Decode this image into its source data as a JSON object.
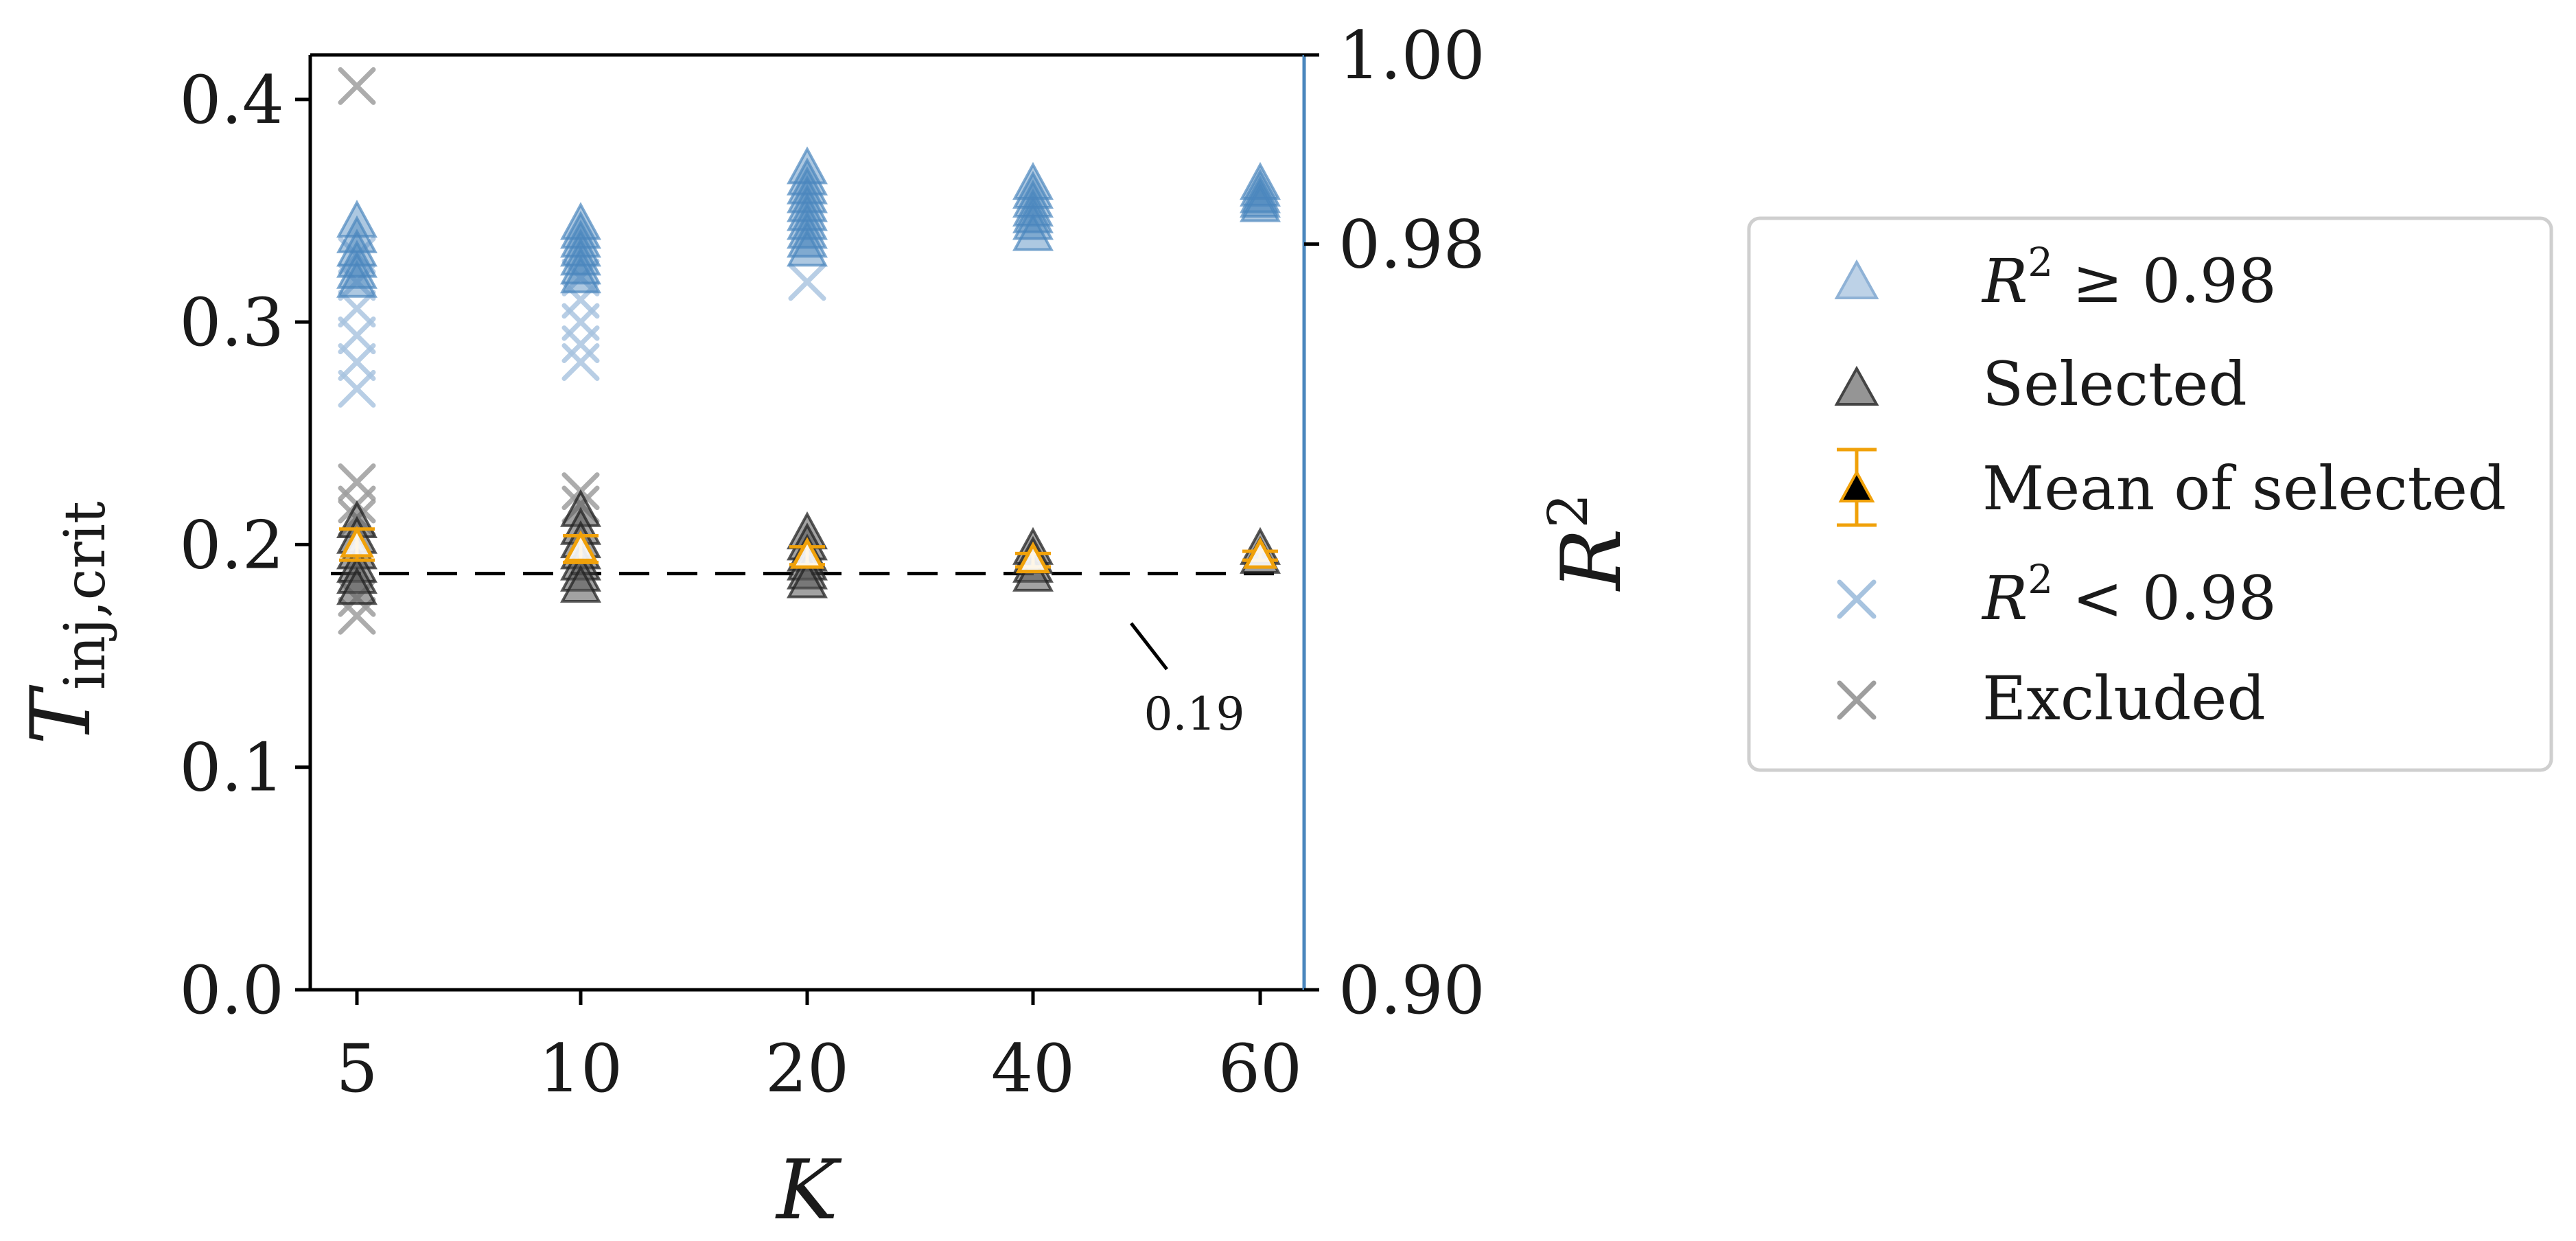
{
  "chart_data": {
    "type": "scatter",
    "xlabel": "K",
    "ylabel_main": "T",
    "ylabel_sub": "inj,crit",
    "ylabel_right": "R",
    "ylabel_right_sup": "2",
    "categories": [
      "5",
      "10",
      "20",
      "40",
      "60"
    ],
    "ylim": [
      0,
      0.42
    ],
    "yticks": [
      "0.0",
      "0.1",
      "0.2",
      "0.3",
      "0.4"
    ],
    "yticks_values": [
      0.0,
      0.1,
      0.2,
      0.3,
      0.4
    ],
    "right_ylim_labels": [
      "0.90",
      "0.98",
      "1.00"
    ],
    "right_tick_positions": [
      0.0,
      0.335,
      0.42
    ],
    "grid": false,
    "legend_position": "right, outside",
    "reference_line": {
      "y": 0.187,
      "style": "dashed",
      "color": "#000000"
    },
    "annotation": {
      "text": "0.19"
    },
    "colors": {
      "r2_high": "#4a86bd",
      "r2_low": "#a7c3df",
      "selected": "#555555",
      "excluded": "#9e9e9e",
      "mean": "#f0a10a",
      "right_axis": "#4a86bd"
    },
    "series": [
      {
        "name": "R^2 ≥ 0.98",
        "marker": "triangle",
        "points": {
          "5": [
            0.345,
            0.338,
            0.332,
            0.327,
            0.322,
            0.318
          ],
          "10": [
            0.344,
            0.34,
            0.336,
            0.332,
            0.328,
            0.324,
            0.32
          ],
          "20": [
            0.369,
            0.364,
            0.36,
            0.356,
            0.352,
            0.348,
            0.344,
            0.34,
            0.336,
            0.332
          ],
          "40": [
            0.362,
            0.358,
            0.354,
            0.35,
            0.347,
            0.344,
            0.339
          ],
          "60": [
            0.362,
            0.359,
            0.356,
            0.354,
            0.352
          ]
        }
      },
      {
        "name": "Selected",
        "marker": "triangle",
        "points": {
          "5": [
            0.21,
            0.203,
            0.196,
            0.19,
            0.185,
            0.18
          ],
          "10": [
            0.215,
            0.207,
            0.201,
            0.196,
            0.191,
            0.186,
            0.181
          ],
          "20": [
            0.205,
            0.2,
            0.195,
            0.191,
            0.187,
            0.183
          ],
          "40": [
            0.198,
            0.194,
            0.19,
            0.186
          ],
          "60": [
            0.198,
            0.194
          ]
        }
      },
      {
        "name": "Mean of selected",
        "marker": "triangle-errorbar",
        "points": {
          "5": [
            0.2
          ],
          "10": [
            0.198
          ],
          "20": [
            0.195
          ],
          "40": [
            0.193
          ],
          "60": [
            0.195
          ]
        },
        "errors": [
          0.007,
          0.006,
          0.004,
          0.003,
          0.002
        ]
      },
      {
        "name": "R^2 < 0.98",
        "marker": "x",
        "points": {
          "5": [
            0.33,
            0.318,
            0.306,
            0.294,
            0.282,
            0.27
          ],
          "10": [
            0.32,
            0.31,
            0.3,
            0.29,
            0.282
          ],
          "20": [
            0.318
          ]
        }
      },
      {
        "name": "Excluded",
        "marker": "x",
        "points": {
          "5": [
            0.406,
            0.228,
            0.218,
            0.212,
            0.176,
            0.168
          ],
          "10": [
            0.224,
            0.218
          ]
        }
      }
    ],
    "legend": {
      "r2_high_italic": "R",
      "r2_high_sup": "2",
      "r2_high_rest": " ≥ 0.98",
      "selected": "Selected",
      "mean": "Mean of selected",
      "r2_low_italic": "R",
      "r2_low_sup": "2",
      "r2_low_rest": " < 0.98",
      "excluded": "Excluded"
    }
  }
}
